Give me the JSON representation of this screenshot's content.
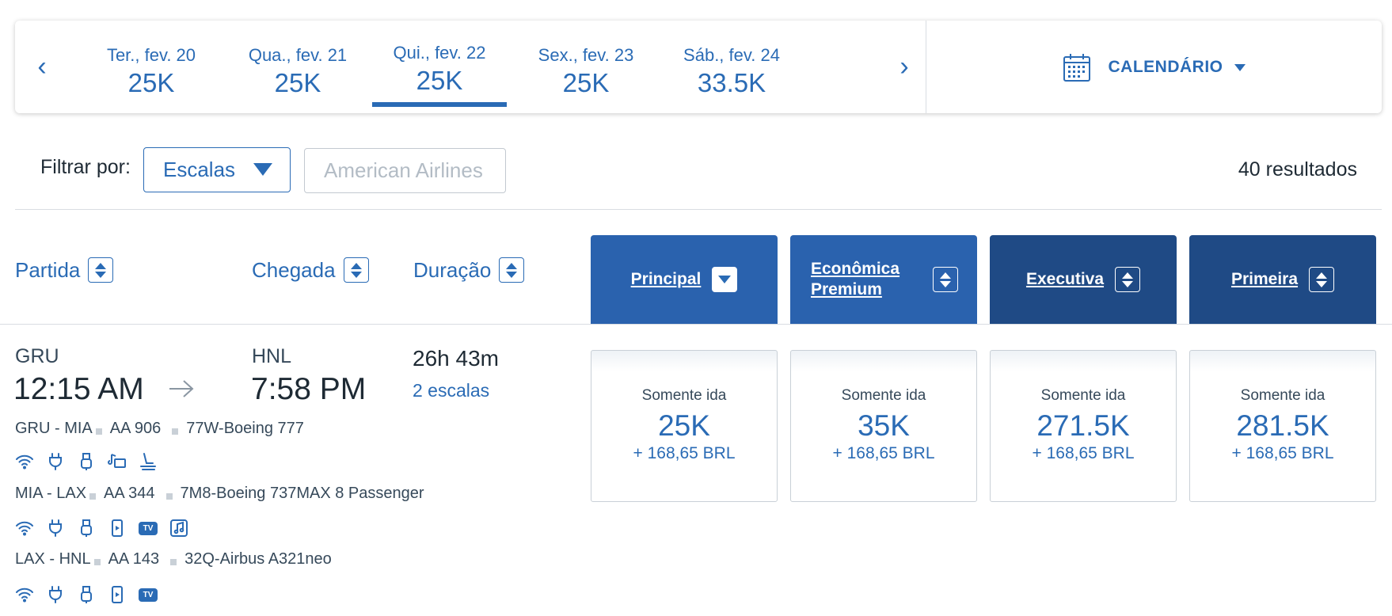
{
  "date_bar": {
    "prev_arrow": "‹",
    "next_arrow": "›",
    "days": [
      {
        "label": "Ter., fev. 20",
        "price": "25K"
      },
      {
        "label": "Qua., fev. 21",
        "price": "25K"
      },
      {
        "label": "Qui., fev. 22",
        "price": "25K",
        "active": true
      },
      {
        "label": "Sex., fev. 23",
        "price": "25K"
      },
      {
        "label": "Sáb., fev. 24",
        "price": "33.5K"
      }
    ],
    "calendar_label": "CALENDÁRIO",
    "calendar_icon": "calendar-icon"
  },
  "filters": {
    "label": "Filtrar por:",
    "stops_select": "Escalas",
    "airline_placeholder": "American Airlines",
    "results": "40 resultados"
  },
  "columns": {
    "departure": "Partida",
    "arrival": "Chegada",
    "duration": "Duração",
    "cabins": [
      {
        "label": "Principal",
        "color": "#2a62ae"
      },
      {
        "label_line1": "Econômica",
        "label_line2": "Premium",
        "color": "#2a62ae"
      },
      {
        "label": "Executiva",
        "color": "#1f4a85"
      },
      {
        "label": "Primeira",
        "color": "#1f4a85"
      }
    ]
  },
  "flight": {
    "origin": "GRU",
    "destination": "HNL",
    "depart_time": "12:15 AM",
    "arrive_time": "7:58 PM",
    "duration": "26h 43m",
    "stops": "2 escalas",
    "segments": [
      {
        "route": "GRU - MIA",
        "flight": "AA 906",
        "aircraft": "77W-Boeing 777",
        "amenities": [
          "wifi-icon",
          "power-icon",
          "usb-icon",
          "entertainment-icon",
          "lie-flat-seat-icon"
        ]
      },
      {
        "route": "MIA - LAX",
        "flight": "AA 344",
        "aircraft": "7M8-Boeing 737MAX 8 Passenger",
        "amenities": [
          "wifi-icon",
          "power-icon",
          "usb-icon",
          "device-icon",
          "tv-icon",
          "music-icon"
        ]
      },
      {
        "route": "LAX - HNL",
        "flight": "AA 143",
        "aircraft": "32Q-Airbus A321neo",
        "amenities": [
          "wifi-icon",
          "power-icon",
          "usb-icon",
          "device-icon",
          "tv-icon"
        ]
      }
    ],
    "tv_badge": "TV",
    "prices": [
      {
        "label": "Somente ida",
        "miles": "25K",
        "tax": "+ 168,65 BRL"
      },
      {
        "label": "Somente ida",
        "miles": "35K",
        "tax": "+ 168,65 BRL"
      },
      {
        "label": "Somente ida",
        "miles": "271.5K",
        "tax": "+ 168,65 BRL"
      },
      {
        "label": "Somente ida",
        "miles": "281.5K",
        "tax": "+ 168,65 BRL"
      }
    ]
  },
  "colors": {
    "link_blue": "#2a6bb5",
    "header_blue": "#2a62ae",
    "header_navy": "#1f4a85"
  }
}
